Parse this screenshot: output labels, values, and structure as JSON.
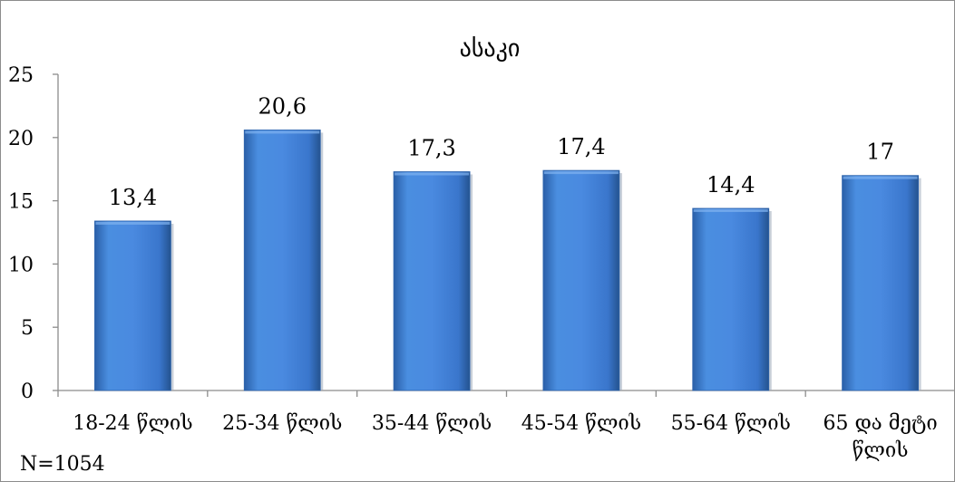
{
  "chart_data": {
    "type": "bar",
    "title": "ასაკი",
    "categories": [
      "18-24 წლის",
      "25-34 წლის",
      "35-44 წლის",
      "45-54 წლის",
      "55-64 წლის",
      "65 და მეტი წლის"
    ],
    "category_lines": [
      [
        "18-24 წლის"
      ],
      [
        "25-34 წლის"
      ],
      [
        "35-44 წლის"
      ],
      [
        "45-54 წლის"
      ],
      [
        "55-64 წლის"
      ],
      [
        "65 და მეტი",
        "წლის"
      ]
    ],
    "values": [
      13.4,
      20.6,
      17.3,
      17.4,
      14.4,
      17
    ],
    "data_labels": [
      "13,4",
      "20,6",
      "17,3",
      "17,4",
      "14,4",
      "17"
    ],
    "ylim": [
      0,
      25
    ],
    "yticks": [
      0,
      5,
      10,
      15,
      20,
      25
    ],
    "xlabel": "",
    "ylabel": "",
    "grid": false,
    "bar_color": "#3f7fd0",
    "note": "N=1054"
  }
}
